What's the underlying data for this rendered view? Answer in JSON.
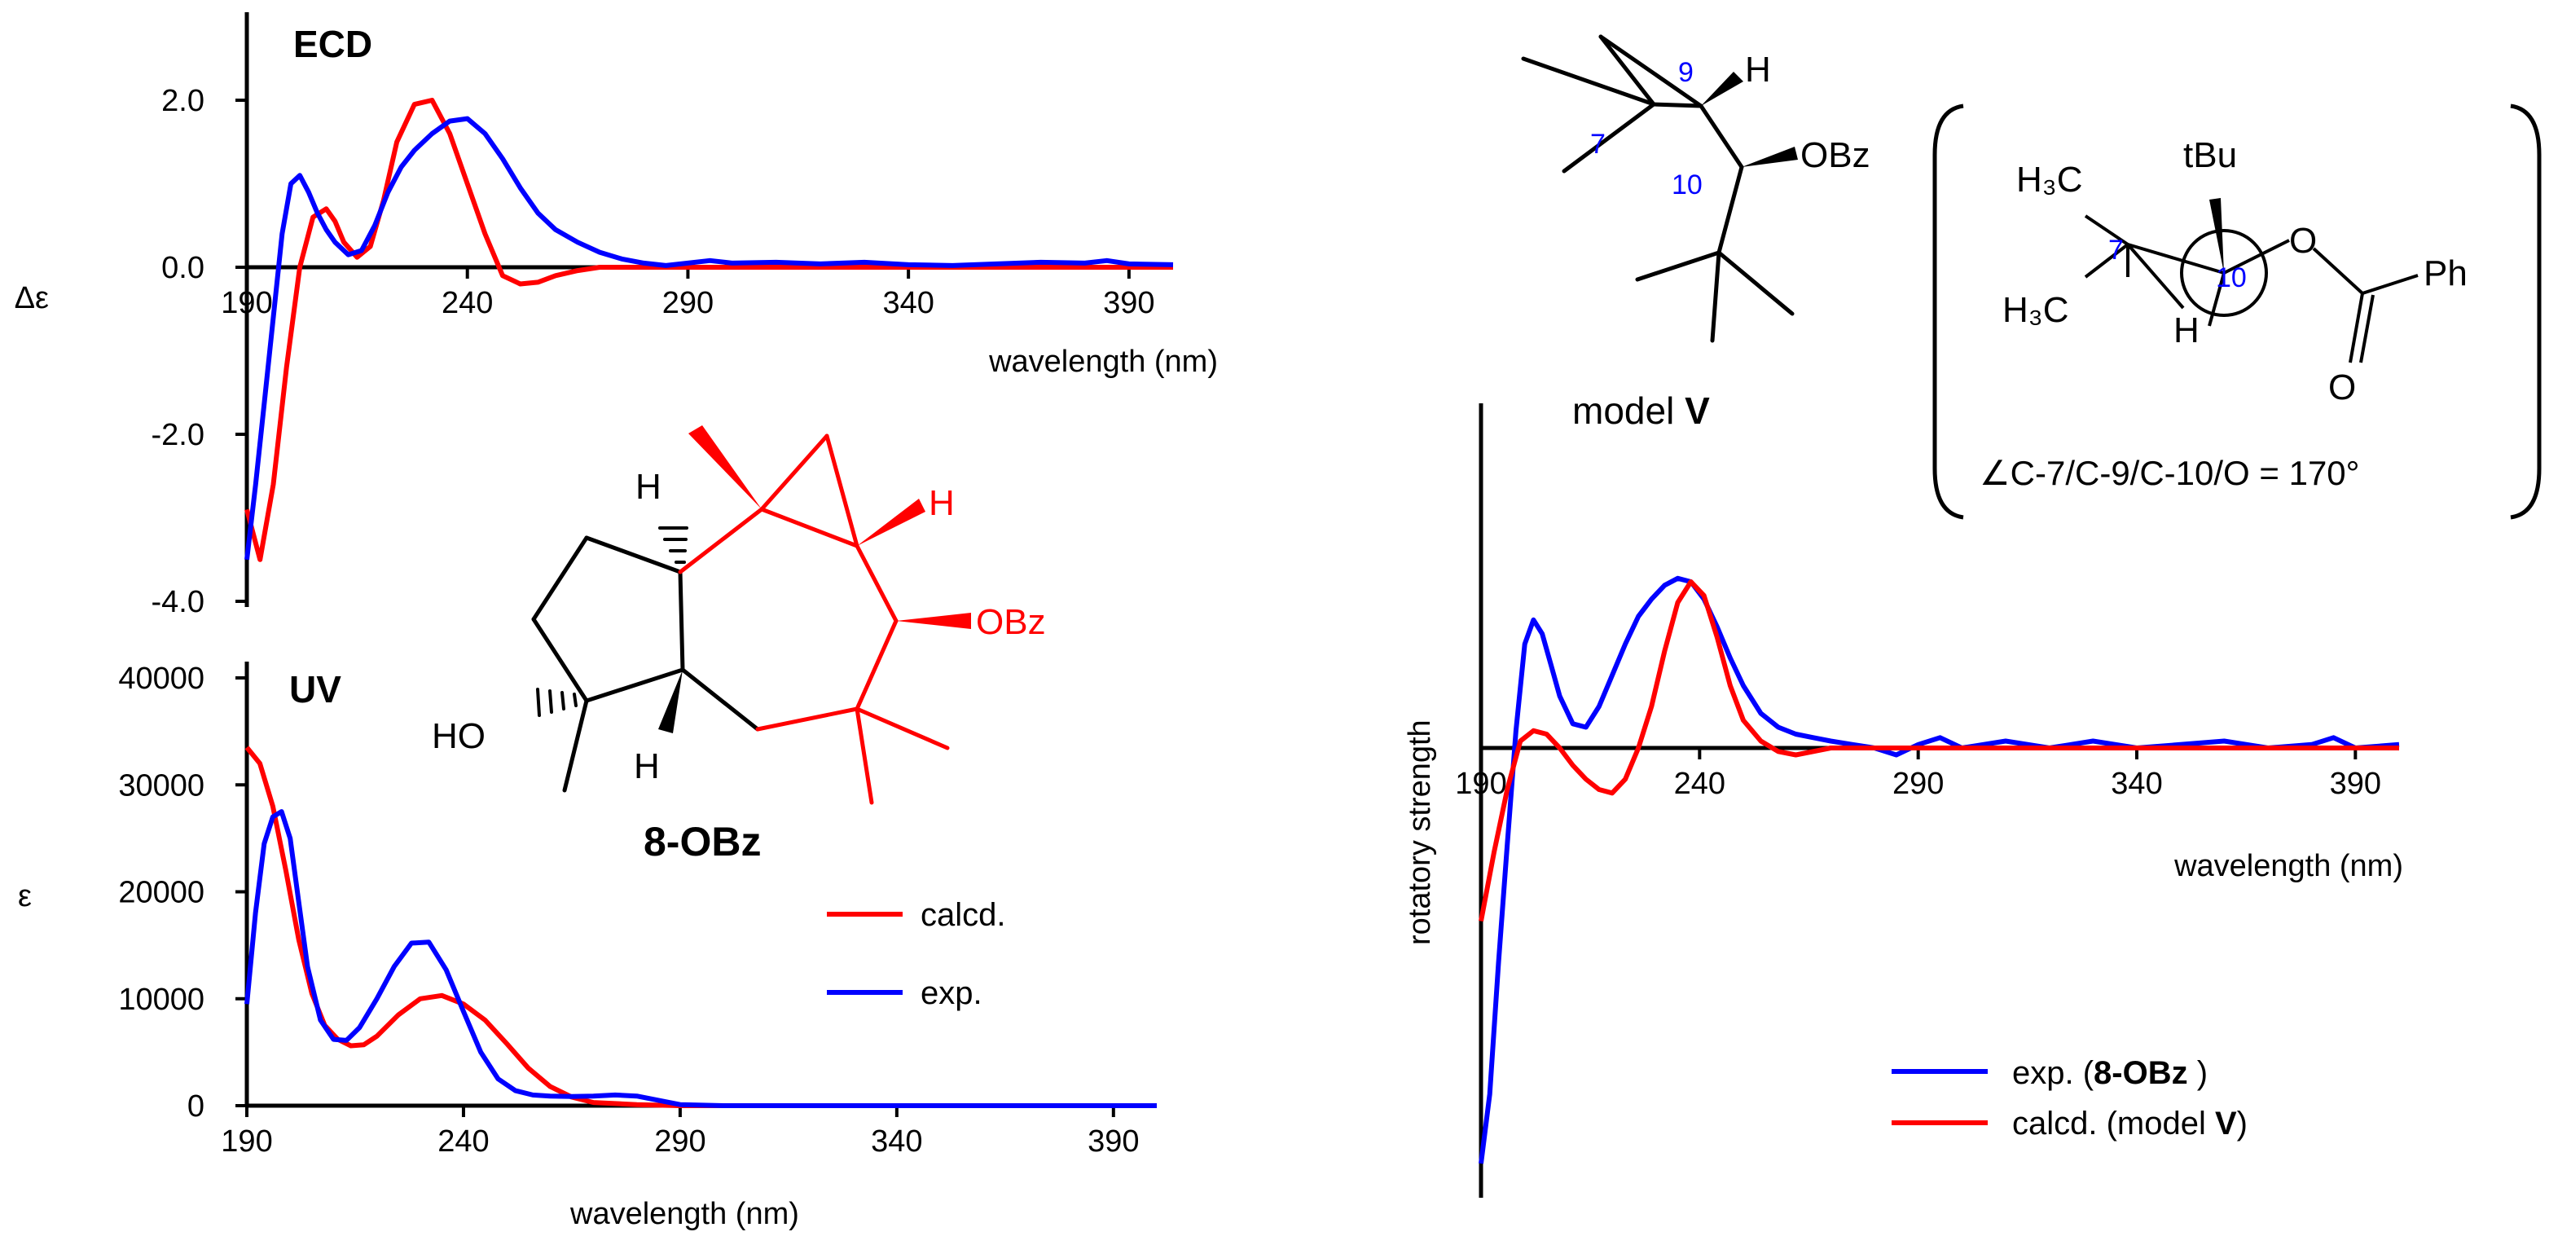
{
  "chart_data": [
    {
      "id": "ecd",
      "type": "line",
      "title": "ECD",
      "ylabel": "Δε",
      "xlabel": "wavelength (nm)",
      "xlim": [
        190,
        400
      ],
      "ylim": [
        -4.0,
        3.0
      ],
      "xticks": [
        "190",
        "240",
        "290",
        "340",
        "390"
      ],
      "yticks": [
        "2.0",
        "0.0",
        "-2.0",
        "-4.0"
      ],
      "series": [
        {
          "name": "calcd.",
          "color": "#ff0000",
          "x": [
            190,
            193,
            196,
            199,
            202,
            205,
            208,
            210,
            212,
            215,
            218,
            221,
            224,
            228,
            232,
            236,
            240,
            244,
            248,
            252,
            256,
            260,
            265,
            270,
            275,
            280,
            290,
            300,
            340,
            400
          ],
          "y": [
            -2.9,
            -3.5,
            -2.6,
            -1.2,
            0.0,
            0.6,
            0.7,
            0.55,
            0.3,
            0.12,
            0.25,
            0.8,
            1.5,
            1.95,
            2.0,
            1.6,
            1.0,
            0.4,
            -0.1,
            -0.2,
            -0.18,
            -0.1,
            -0.04,
            0.0,
            0.0,
            0.0,
            0.0,
            0.0,
            0.0,
            0.0
          ]
        },
        {
          "name": "exp.",
          "color": "#0000ff",
          "x": [
            190,
            192,
            194,
            196,
            198,
            200,
            202,
            204,
            206,
            208,
            210,
            213,
            216,
            219,
            222,
            225,
            228,
            232,
            236,
            240,
            244,
            248,
            252,
            256,
            260,
            265,
            270,
            275,
            280,
            285,
            290,
            295,
            300,
            310,
            320,
            330,
            340,
            350,
            360,
            370,
            380,
            385,
            390,
            400
          ],
          "y": [
            -3.5,
            -2.6,
            -1.6,
            -0.6,
            0.4,
            1.0,
            1.1,
            0.9,
            0.65,
            0.45,
            0.3,
            0.15,
            0.2,
            0.5,
            0.9,
            1.2,
            1.4,
            1.6,
            1.75,
            1.78,
            1.6,
            1.3,
            0.95,
            0.65,
            0.45,
            0.3,
            0.18,
            0.1,
            0.05,
            0.02,
            0.05,
            0.08,
            0.05,
            0.06,
            0.04,
            0.06,
            0.03,
            0.02,
            0.04,
            0.06,
            0.05,
            0.08,
            0.04,
            0.03
          ]
        }
      ]
    },
    {
      "id": "uv",
      "type": "line",
      "title": "UV",
      "ylabel": "ε",
      "xlabel": "wavelength (nm)",
      "xlim": [
        190,
        400
      ],
      "ylim": [
        0,
        40000
      ],
      "xticks": [
        "190",
        "240",
        "290",
        "340",
        "390"
      ],
      "yticks": [
        "40000",
        "30000",
        "20000",
        "10000",
        "0"
      ],
      "series": [
        {
          "name": "calcd.",
          "color": "#ff0000",
          "x": [
            190,
            193,
            196,
            199,
            202,
            205,
            208,
            211,
            214,
            217,
            220,
            225,
            230,
            235,
            240,
            245,
            250,
            255,
            260,
            265,
            270,
            280,
            290,
            300,
            400
          ],
          "y": [
            33500,
            32000,
            28000,
            22000,
            15500,
            10500,
            7500,
            6200,
            5600,
            5700,
            6500,
            8500,
            10000,
            10300,
            9500,
            8000,
            5800,
            3500,
            1800,
            800,
            300,
            100,
            0,
            0,
            0
          ]
        },
        {
          "name": "exp.",
          "color": "#0000ff",
          "x": [
            190,
            192,
            194,
            196,
            198,
            200,
            202,
            204,
            207,
            210,
            213,
            216,
            220,
            224,
            228,
            232,
            236,
            240,
            244,
            248,
            252,
            256,
            260,
            265,
            270,
            275,
            280,
            285,
            290,
            300,
            400
          ],
          "y": [
            9500,
            18000,
            24500,
            27000,
            27500,
            25000,
            19000,
            13000,
            8000,
            6200,
            6100,
            7300,
            10000,
            13000,
            15200,
            15300,
            12700,
            8800,
            5000,
            2500,
            1400,
            1000,
            900,
            850,
            900,
            1000,
            900,
            500,
            100,
            0,
            0
          ]
        }
      ]
    },
    {
      "id": "rotatory",
      "type": "line",
      "title": "",
      "ylabel": "rotatory strength",
      "xlabel": "wavelength (nm)",
      "xlim": [
        190,
        400
      ],
      "ylim": [
        -1.3,
        0.55
      ],
      "xticks": [
        "190",
        "240",
        "290",
        "340",
        "390"
      ],
      "series": [
        {
          "name": "exp. (8-OBz )",
          "color": "#0000ff",
          "x": [
            190,
            192,
            194,
            196,
            198,
            200,
            202,
            204,
            206,
            208,
            211,
            214,
            217,
            220,
            223,
            226,
            229,
            232,
            235,
            238,
            241,
            244,
            247,
            250,
            254,
            258,
            262,
            266,
            270,
            275,
            280,
            285,
            290,
            295,
            300,
            310,
            320,
            330,
            340,
            350,
            360,
            370,
            380,
            385,
            390,
            400
          ],
          "y": [
            -1.2,
            -1.0,
            -0.62,
            -0.28,
            0.05,
            0.3,
            0.37,
            0.33,
            0.24,
            0.15,
            0.07,
            0.06,
            0.12,
            0.21,
            0.3,
            0.38,
            0.43,
            0.47,
            0.49,
            0.48,
            0.43,
            0.35,
            0.26,
            0.18,
            0.1,
            0.06,
            0.04,
            0.03,
            0.02,
            0.01,
            0.0,
            -0.02,
            0.01,
            0.03,
            0.0,
            0.02,
            0.0,
            0.02,
            0.0,
            0.01,
            0.02,
            0.0,
            0.01,
            0.03,
            0.0,
            0.01
          ]
        },
        {
          "name": "calcd. (model V)",
          "color": "#ff0000",
          "x": [
            190,
            193,
            196,
            199,
            202,
            205,
            208,
            211,
            214,
            217,
            220,
            223,
            226,
            229,
            232,
            235,
            238,
            241,
            244,
            247,
            250,
            254,
            258,
            262,
            266,
            270,
            280,
            300,
            400
          ],
          "y": [
            -0.5,
            -0.3,
            -0.12,
            0.02,
            0.05,
            0.04,
            0.0,
            -0.05,
            -0.09,
            -0.12,
            -0.13,
            -0.09,
            0.0,
            0.12,
            0.28,
            0.42,
            0.48,
            0.44,
            0.32,
            0.18,
            0.08,
            0.02,
            -0.01,
            -0.02,
            -0.01,
            0.0,
            0.0,
            0.0,
            0.0
          ]
        }
      ]
    }
  ],
  "legend_uv": {
    "calcd": "calcd.",
    "exp": "exp."
  },
  "legend_rs": {
    "exp_prefix": "exp. (",
    "exp_bold": "8-OBz",
    "exp_suffix": " )",
    "calcd_prefix": "calcd. (model ",
    "calcd_bold": "V",
    "calcd_suffix": ")"
  },
  "structure_8obz": {
    "name": "8-OBz",
    "h_top": "H",
    "h_bottom": "H",
    "h_red": "H",
    "obz": "OBz",
    "ho": "HO"
  },
  "model_v": {
    "label_prefix": "model ",
    "label_bold": "V",
    "h": "H",
    "obz": "OBz",
    "c7": "7",
    "c9": "9",
    "c10": "10"
  },
  "newman": {
    "h3c_top": "H₃C",
    "h3c_bottom": "H₃C",
    "tbu": "tBu",
    "o": "O",
    "ph": "Ph",
    "o_carbonyl": "O",
    "h": "H",
    "c7": "7",
    "c10": "10",
    "angle_text": "∠C-7/C-9/C-10/O = 170°"
  }
}
